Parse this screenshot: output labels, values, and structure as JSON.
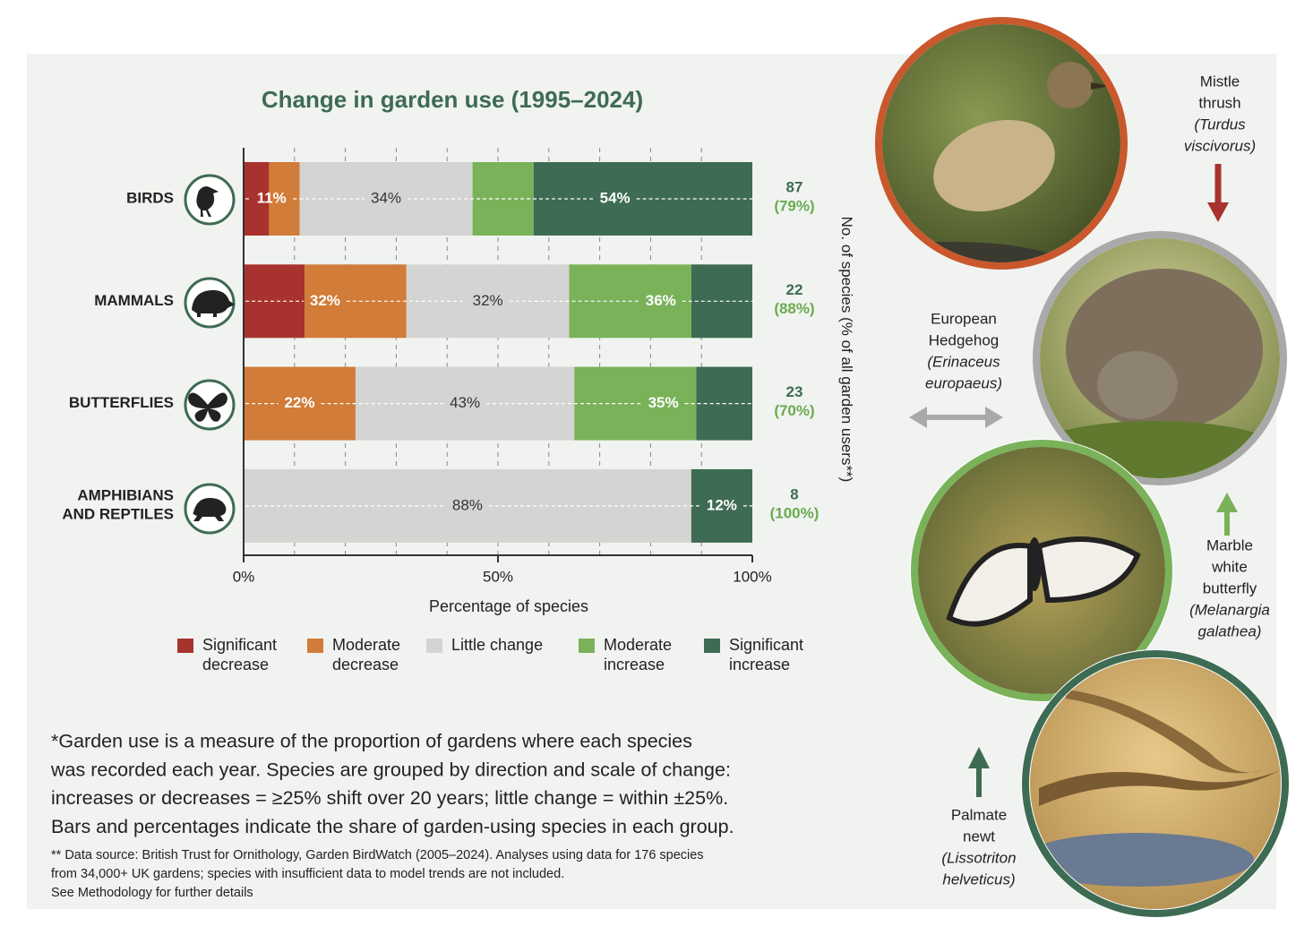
{
  "chart_data": {
    "type": "stacked_bar",
    "orientation": "horizontal",
    "title": "Change in garden use (1995–2024)",
    "categories": [
      "BIRDS",
      "MAMMALS",
      "BUTTERFLIES",
      "AMPHIBIANS AND REPTILES"
    ],
    "series": [
      {
        "name": "Significant decrease",
        "color": "#a8332e",
        "values": [
          5,
          12,
          0,
          0
        ]
      },
      {
        "name": "Moderate decrease",
        "color": "#d17c38",
        "values": [
          6,
          20,
          22,
          0
        ]
      },
      {
        "name": "Little change",
        "color": "#d4d4d2",
        "values": [
          34,
          32,
          43,
          88
        ]
      },
      {
        "name": "Moderate increase",
        "color": "#7ab25a",
        "values": [
          12,
          24,
          24,
          0
        ]
      },
      {
        "name": "Significant increase",
        "color": "#3e6b53",
        "values": [
          43,
          12,
          11,
          12
        ]
      }
    ],
    "decrease_totals": {
      "values": [
        11,
        32,
        22,
        null
      ],
      "value_labels": [
        "11%",
        "32%",
        "22%",
        null
      ]
    },
    "little_change_totals": {
      "values": [
        34,
        32,
        43,
        88
      ],
      "value_labels": [
        "34%",
        "32%",
        "43%",
        "88%"
      ]
    },
    "increase_totals": {
      "values": [
        54,
        36,
        35,
        12
      ],
      "value_labels": [
        "54%",
        "36%",
        "35%",
        "12%"
      ]
    },
    "species_counts": [
      87,
      22,
      23,
      8
    ],
    "garden_user_shares": {
      "values": [
        79,
        88,
        70,
        100
      ],
      "value_labels": [
        "(79%)",
        "(88%)",
        "(70%)",
        "(100%)"
      ]
    },
    "xlabel": "Percentage of species",
    "y2label": "No. of species (% of all garden users**)",
    "xlim": [
      0,
      100
    ],
    "xticks": [
      {
        "value": 0,
        "label": "0%"
      },
      {
        "value": 50,
        "label": "50%"
      },
      {
        "value": 100,
        "label": "100%"
      }
    ],
    "xgrid": [
      10,
      20,
      30,
      40,
      50,
      60,
      70,
      80,
      90
    ],
    "grid": true
  },
  "footnotes": {
    "main": [
      "*Garden use is a measure of the proportion of gardens where each species",
      "was recorded each year. Species are grouped by direction and scale of change:",
      "increases or decreases = ≥25% shift over 20 years; little change = within ±25%.",
      "Bars and percentages indicate the share of garden-using species in each group."
    ],
    "source": [
      "** Data source: British Trust for Ornithology, Garden BirdWatch (2005–2024). Analyses using data for 176 species",
      "from 34,000+ UK gardens; species with insufficient data to model trends are not included.",
      "See Methodology for further details"
    ]
  },
  "photos": [
    {
      "lines": [
        "Mistle",
        "thrush"
      ],
      "latin_lines": [
        "(Turdus",
        "viscivorus)"
      ]
    },
    {
      "lines": [
        "European",
        "Hedgehog"
      ],
      "latin_lines": [
        "(Erinaceus",
        "europaeus)"
      ]
    },
    {
      "lines": [
        "Marble",
        "white",
        "butterfly"
      ],
      "latin_lines": [
        "(Melanargia",
        "galathea)"
      ]
    },
    {
      "lines": [
        "Palmate",
        "newt"
      ],
      "latin_lines": [
        "(Lissotriton",
        "helveticus)"
      ]
    }
  ]
}
